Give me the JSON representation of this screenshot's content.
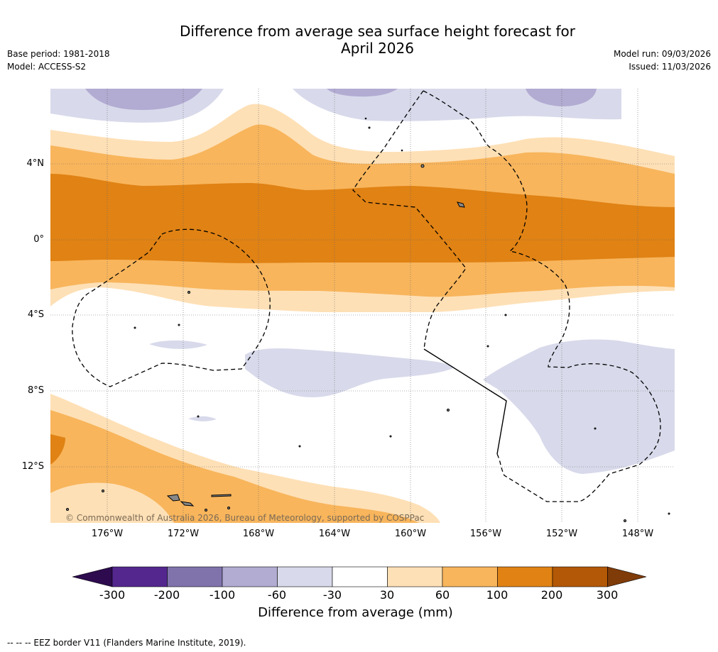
{
  "header": {
    "title_line1": "Difference from average sea surface height forecast for",
    "title_line2": "April 2026",
    "base_period": "Base period: 1981-2018",
    "model": "Model: ACCESS-S2",
    "model_run": "Model run: 09/03/2026",
    "issued": "Issued: 11/03/2026"
  },
  "map": {
    "lat_labels": [
      "4°N",
      "0°",
      "4°S",
      "8°S",
      "12°S"
    ],
    "lon_labels": [
      "176°W",
      "172°W",
      "168°W",
      "164°W",
      "160°W",
      "156°W",
      "152°W",
      "148°W"
    ],
    "copyright": "© Commonwealth of Australia 2026, Bureau of Meteorology, supported by COSPPac"
  },
  "colorbar": {
    "ticks": [
      "-300",
      "-200",
      "-100",
      "-60",
      "-30",
      "30",
      "60",
      "100",
      "200",
      "300"
    ],
    "colors": [
      "#2d0b4e",
      "#54278f",
      "#8073ac",
      "#b2abd2",
      "#d8daeb",
      "#ffffff",
      "#fee0b6",
      "#f8b55c",
      "#e08214",
      "#b35806",
      "#7f3b08"
    ],
    "label": "Difference from average (mm)"
  },
  "footer": {
    "eez_note": "--  --  -- EEZ border V11 (Flanders Marine Institute, 2019)."
  }
}
